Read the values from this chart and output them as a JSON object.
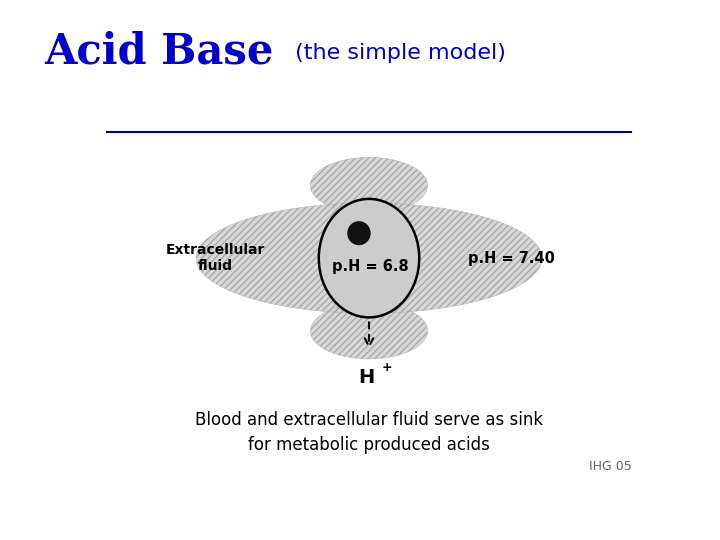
{
  "title_main": "Acid Base",
  "title_sub": " (the simple model)",
  "title_color_main": "#0000CC",
  "title_color_sub": "#0000CC",
  "title_fontsize_main": 30,
  "title_fontsize_sub": 16,
  "line_color": "#00008B",
  "bg_color": "#ffffff",
  "hatched_color": "#d8d8d8",
  "cell_fill": "#cccccc",
  "cell_border": "#000000",
  "nucleus_color": "#111111",
  "label_extracellular": "Extracellular\nfluid",
  "label_ph_cell": "p.H = 6.8",
  "label_ph_ecf": "p.H = 7.40",
  "label_hplus": "H",
  "label_hplus_super": "+",
  "bottom_text_line1": "Blood and extracellular fluid serve as sink",
  "bottom_text_line2": "for metabolic produced acids",
  "watermark": "IHG 05",
  "watermark_fontsize": 9
}
